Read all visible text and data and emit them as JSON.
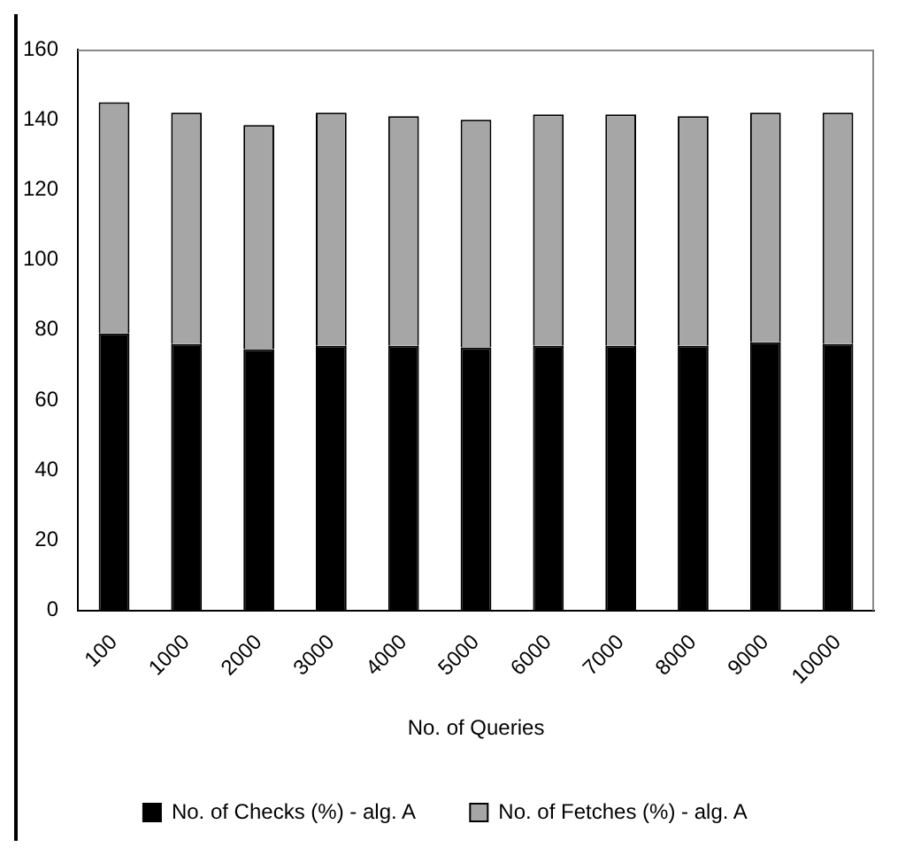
{
  "chart_data": {
    "type": "bar",
    "stacked": true,
    "xlabel": "No. of Queries",
    "categories": [
      "100",
      "1000",
      "2000",
      "3000",
      "4000",
      "5000",
      "6000",
      "7000",
      "8000",
      "9000",
      "10000"
    ],
    "series": [
      {
        "name": "No. of Checks (%) - alg. A",
        "color": "#000000",
        "values": [
          79,
          76,
          74.5,
          75.5,
          75.5,
          75,
          75.5,
          75.5,
          75.5,
          76.5,
          76
        ]
      },
      {
        "name": "No. of Fetches (%) - alg. A",
        "color": "#a6a6a6",
        "values": [
          66,
          66,
          64,
          66.5,
          65.5,
          65,
          66,
          66,
          65.5,
          65.5,
          66
        ]
      }
    ],
    "ylim": [
      0,
      160
    ],
    "yticks": [
      0,
      20,
      40,
      60,
      80,
      100,
      120,
      140,
      160
    ],
    "grid": false,
    "legend": "bottom"
  }
}
